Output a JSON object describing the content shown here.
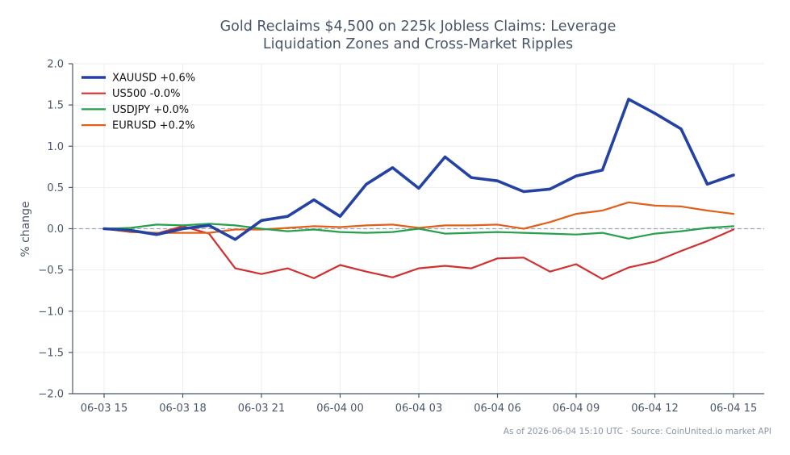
{
  "chart_data": {
    "type": "line",
    "title_lines": [
      "Gold Reclaims $4,500 on 225k Jobless Claims: Leverage",
      "Liquidation Zones and Cross-Market Ripples"
    ],
    "ylabel": "% change",
    "xlabel": "",
    "ylim": [
      -2.0,
      2.0
    ],
    "yticks": [
      2.0,
      1.5,
      1.0,
      0.5,
      0.0,
      -0.5,
      -1.0,
      -1.5,
      -2.0
    ],
    "ytick_labels": [
      "2.0",
      "1.5",
      "1.0",
      "0.5",
      "0.0",
      "−0.5",
      "−1.0",
      "−1.5",
      "−2.0"
    ],
    "x": [
      "06-03 15:00",
      "06-03 16:00",
      "06-03 17:00",
      "06-03 18:00",
      "06-03 19:00",
      "06-03 20:00",
      "06-03 21:00",
      "06-03 22:00",
      "06-03 23:00",
      "06-04 00:00",
      "06-04 01:00",
      "06-04 02:00",
      "06-04 03:00",
      "06-04 04:00",
      "06-04 05:00",
      "06-04 06:00",
      "06-04 07:00",
      "06-04 08:00",
      "06-04 09:00",
      "06-04 10:00",
      "06-04 11:00",
      "06-04 12:00",
      "06-04 13:00",
      "06-04 14:00",
      "06-04 15:00"
    ],
    "xticks": [
      "06-03 15:00",
      "06-03 18:00",
      "06-03 21:00",
      "06-04 00:00",
      "06-04 03:00",
      "06-04 06:00",
      "06-04 09:00",
      "06-04 12:00",
      "06-04 15:00"
    ],
    "xtick_labels": [
      "06-03 15",
      "06-03 18",
      "06-03 21",
      "06-04 00",
      "06-04 03",
      "06-04 06",
      "06-04 09",
      "06-04 12",
      "06-04 15"
    ],
    "zero_line": 0.0,
    "grid": true,
    "legend_position": "top-left",
    "series": [
      {
        "name": "XAUUSD +0.6%",
        "color": "#2442a3",
        "values": [
          0.0,
          -0.02,
          -0.07,
          0.0,
          0.04,
          -0.13,
          0.1,
          0.15,
          0.35,
          0.15,
          0.54,
          0.74,
          0.49,
          0.87,
          0.62,
          0.58,
          0.45,
          0.48,
          0.64,
          0.71,
          1.57,
          1.4,
          1.21,
          0.54,
          0.65
        ]
      },
      {
        "name": "US500 -0.0%",
        "color": "#d03030",
        "values": [
          0.0,
          -0.02,
          -0.06,
          0.03,
          -0.06,
          -0.48,
          -0.55,
          -0.48,
          -0.6,
          -0.44,
          -0.52,
          -0.59,
          -0.48,
          -0.45,
          -0.48,
          -0.36,
          -0.35,
          -0.52,
          -0.43,
          -0.61,
          -0.47,
          -0.4,
          -0.27,
          -0.15,
          -0.01
        ]
      },
      {
        "name": "USDJPY +0.0%",
        "color": "#26a04a",
        "values": [
          0.0,
          0.01,
          0.05,
          0.04,
          0.06,
          0.04,
          0.0,
          -0.03,
          -0.01,
          -0.04,
          -0.05,
          -0.04,
          0.0,
          -0.06,
          -0.05,
          -0.04,
          -0.05,
          -0.06,
          -0.07,
          -0.05,
          -0.12,
          -0.06,
          -0.03,
          0.01,
          0.03
        ]
      },
      {
        "name": "EURUSD +0.2%",
        "color": "#e0601a",
        "values": [
          0.0,
          -0.04,
          -0.05,
          -0.05,
          -0.05,
          -0.01,
          -0.01,
          0.01,
          0.03,
          0.02,
          0.04,
          0.05,
          0.01,
          0.04,
          0.04,
          0.05,
          0.0,
          0.08,
          0.18,
          0.22,
          0.32,
          0.28,
          0.27,
          0.22,
          0.18
        ]
      }
    ],
    "footnote": "As of 2026-06-04 15:10 UTC · Source: CoinUnited.io market API"
  }
}
